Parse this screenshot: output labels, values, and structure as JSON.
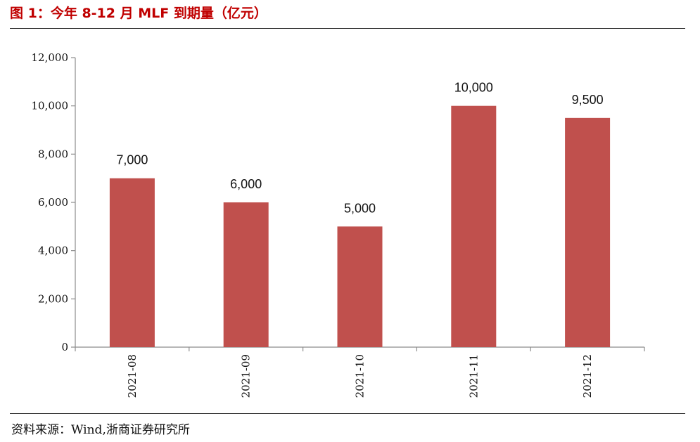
{
  "title": "图 1：今年 8-12 月 MLF 到期量（亿元）",
  "source": "资料来源：Wind,浙商证券研究所",
  "colors": {
    "bar": "#C0504D",
    "title": "#C00000",
    "axis": "#8C8C8C"
  },
  "chart_data": {
    "type": "bar",
    "title": "今年 8-12 月 MLF 到期量（亿元）",
    "categories": [
      "2021-08",
      "2021-09",
      "2021-10",
      "2021-11",
      "2021-12"
    ],
    "values": [
      7000,
      6000,
      5000,
      10000,
      9500
    ],
    "data_labels": [
      "7,000",
      "6,000",
      "5,000",
      "10,000",
      "9,500"
    ],
    "y_ticks": [
      0,
      2000,
      4000,
      6000,
      8000,
      10000,
      12000
    ],
    "y_tick_labels": [
      "0",
      "2,000",
      "4,000",
      "6,000",
      "8,000",
      "10,000",
      "12,000"
    ],
    "ylim": [
      0,
      12000
    ],
    "xlabel": "",
    "ylabel": "",
    "grid": false,
    "legend": "none"
  }
}
